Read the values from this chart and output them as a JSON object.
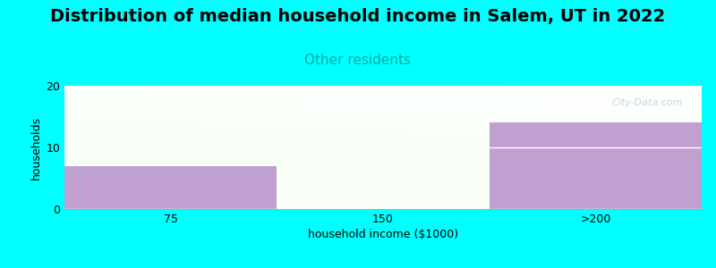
{
  "title": "Distribution of median household income in Salem, UT in 2022",
  "subtitle": "Other residents",
  "xlabel": "household income ($1000)",
  "ylabel": "households",
  "categories": [
    "75",
    "150",
    ">200"
  ],
  "values": [
    7,
    0,
    14
  ],
  "bar_color": "#c0a0d0",
  "ylim": [
    0,
    20
  ],
  "yticks": [
    0,
    10,
    20
  ],
  "background_color": "#00ffff",
  "title_fontsize": 14,
  "subtitle_fontsize": 11,
  "subtitle_color": "#00aaaa",
  "axis_label_fontsize": 9,
  "tick_fontsize": 9,
  "watermark": "City-Data.com"
}
